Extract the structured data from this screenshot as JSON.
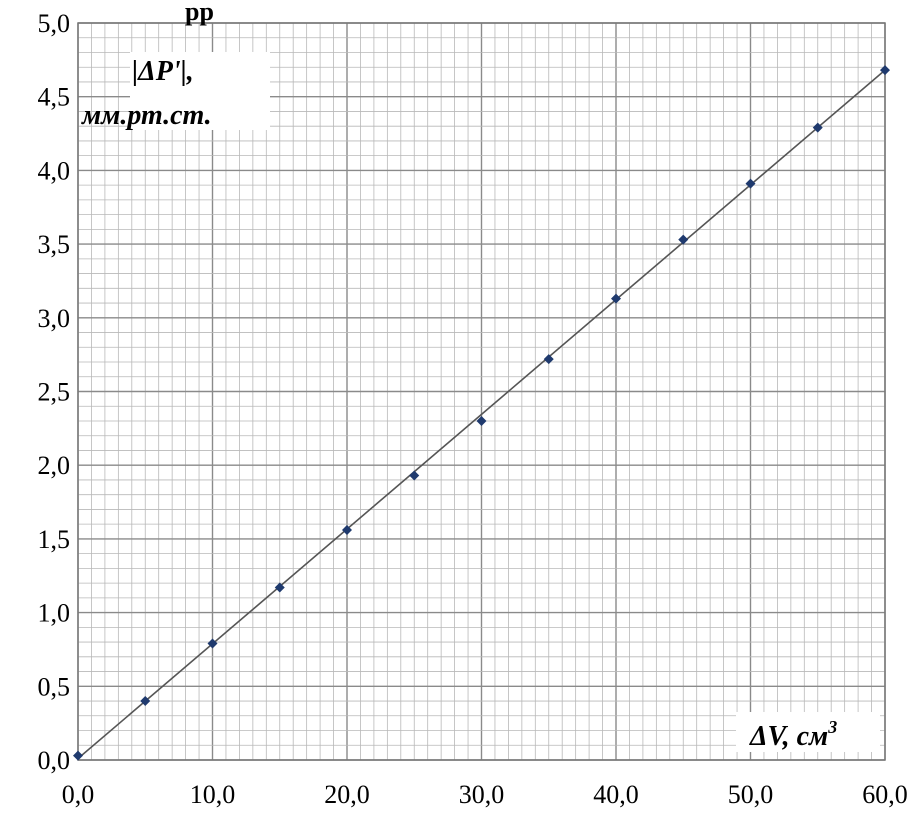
{
  "chart_data": {
    "type": "scatter",
    "title_fragment": "рр",
    "ylabel_line1": "|ΔP'|,",
    "ylabel_line2": "мм.рт.ст.",
    "xlabel_main": "ΔV, см",
    "xlabel_sup": "3",
    "xlim": [
      0,
      60
    ],
    "ylim": [
      0,
      5
    ],
    "xticks": [
      "0,0",
      "10,0",
      "20,0",
      "30,0",
      "40,0",
      "50,0",
      "60,0"
    ],
    "yticks": [
      "0,0",
      "0,5",
      "1,0",
      "1,5",
      "2,0",
      "2,5",
      "3,0",
      "3,5",
      "4,0",
      "4,5",
      "5,0"
    ],
    "grid": true,
    "series": [
      {
        "x": [
          0,
          5,
          10,
          15,
          20,
          25,
          30,
          35,
          40,
          45,
          50,
          55,
          60
        ],
        "y": [
          0.03,
          0.4,
          0.79,
          1.17,
          1.56,
          1.93,
          2.3,
          2.72,
          3.13,
          3.53,
          3.91,
          4.29,
          4.68
        ]
      }
    ],
    "trendline": {
      "x": [
        0,
        60
      ],
      "y": [
        0.01,
        4.68
      ]
    },
    "marker_color": "#1f3a6e",
    "line_color": "#555555"
  }
}
